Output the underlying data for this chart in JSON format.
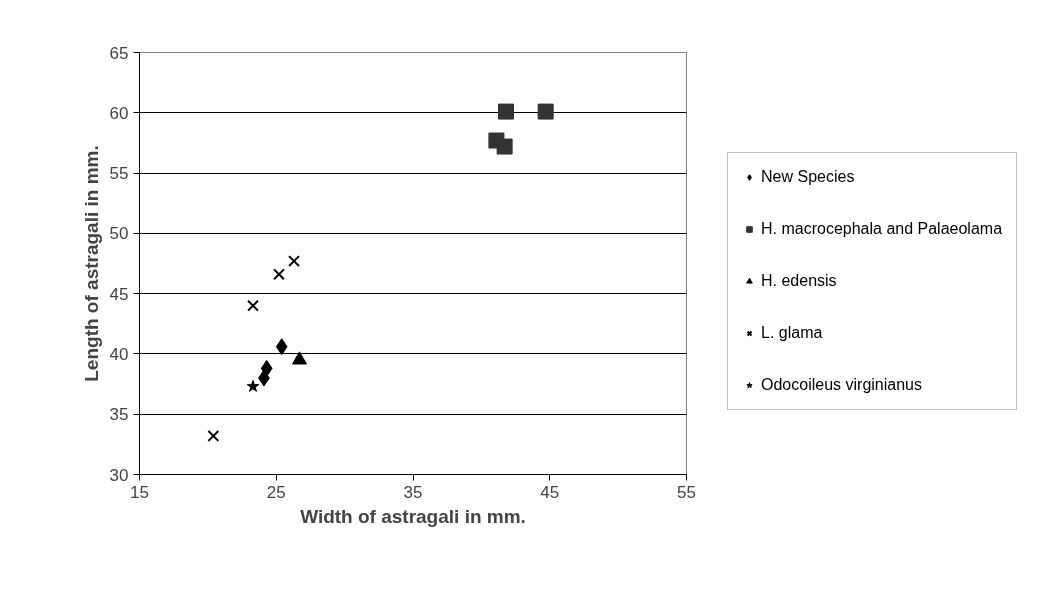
{
  "chart_data": {
    "type": "scatter",
    "xlabel": "Width of astragali in mm.",
    "ylabel": "Length of astragali in mm.",
    "xlim": [
      15,
      55
    ],
    "xticks": [
      15,
      25,
      35,
      45,
      55
    ],
    "ylim": [
      30,
      65
    ],
    "yticks": [
      30,
      35,
      40,
      45,
      50,
      55,
      60,
      65
    ],
    "grid": "y",
    "legend": "right",
    "series": [
      {
        "name": "New Species",
        "color": "#000000",
        "marker": "diamond",
        "x": [
          25.4,
          24.3,
          24.1
        ],
        "values": [
          40.6,
          38.8,
          38.0
        ]
      },
      {
        "name": "H. macrocephala and Palaeolama",
        "color": "#333333",
        "marker": "square",
        "x": [
          41.8,
          44.7,
          41.1,
          41.7
        ],
        "values": [
          60.1,
          60.1,
          57.7,
          57.2
        ]
      },
      {
        "name": "H. edensis",
        "color": "#000000",
        "marker": "triangle",
        "x": [
          26.7
        ],
        "values": [
          39.5
        ]
      },
      {
        "name": "L. glama",
        "color": "#000000",
        "marker": "cross",
        "x": [
          20.4,
          23.3,
          25.2,
          26.3
        ],
        "values": [
          33.2,
          44.0,
          46.6,
          47.7
        ]
      },
      {
        "name": "Odocoileus virginianus",
        "color": "#000000",
        "marker": "star",
        "x": [
          23.3
        ],
        "values": [
          37.3
        ]
      }
    ]
  }
}
